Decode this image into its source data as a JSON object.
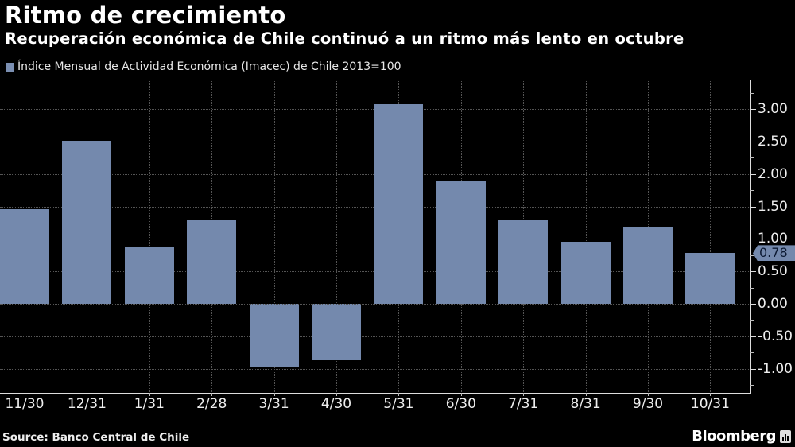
{
  "header": {
    "title": "Ritmo de crecimiento",
    "subtitle": "Recuperación económica de Chile continuó a un ritmo más lento en octubre"
  },
  "legend": {
    "label": "Índice Mensual de Actividad Económica (Imacec) de Chile 2013=100",
    "color": "#7489ad"
  },
  "footer": {
    "source": "Source: Banco Central de Chile",
    "brand": "Bloomberg"
  },
  "last_value_tag": "0.78",
  "colors": {
    "bar": "#7489ad",
    "background": "#000000",
    "grid": "#555555"
  },
  "chart_data": {
    "type": "bar",
    "title": "Ritmo de crecimiento",
    "subtitle": "Recuperación económica de Chile continuó a un ritmo más lento en octubre",
    "xlabel": "",
    "ylabel": "",
    "legend": [
      "Índice Mensual de Actividad Económica (Imacec) de Chile 2013=100"
    ],
    "legend_position": "top-left",
    "categories": [
      "11/30",
      "12/31",
      "1/31",
      "2/28",
      "3/31",
      "4/30",
      "5/31",
      "6/30",
      "7/31",
      "8/31",
      "9/30",
      "10/31"
    ],
    "values": [
      1.46,
      2.51,
      0.88,
      1.29,
      -0.98,
      -0.86,
      3.08,
      1.89,
      1.29,
      0.96,
      1.19,
      0.78
    ],
    "ylim": [
      -1.4,
      3.5
    ],
    "yticks": [
      "3.00",
      "2.50",
      "2.00",
      "1.50",
      "1.00",
      "0.50",
      "0.00",
      "-0.50",
      "-1.00"
    ],
    "ytick_values": [
      3.0,
      2.5,
      2.0,
      1.5,
      1.0,
      0.5,
      0.0,
      -0.5,
      -1.0
    ],
    "y_axis_position": "right",
    "grid": true,
    "annotations": [
      {
        "label": "0.78",
        "category": "10/31",
        "type": "last-value-tag"
      }
    ]
  }
}
